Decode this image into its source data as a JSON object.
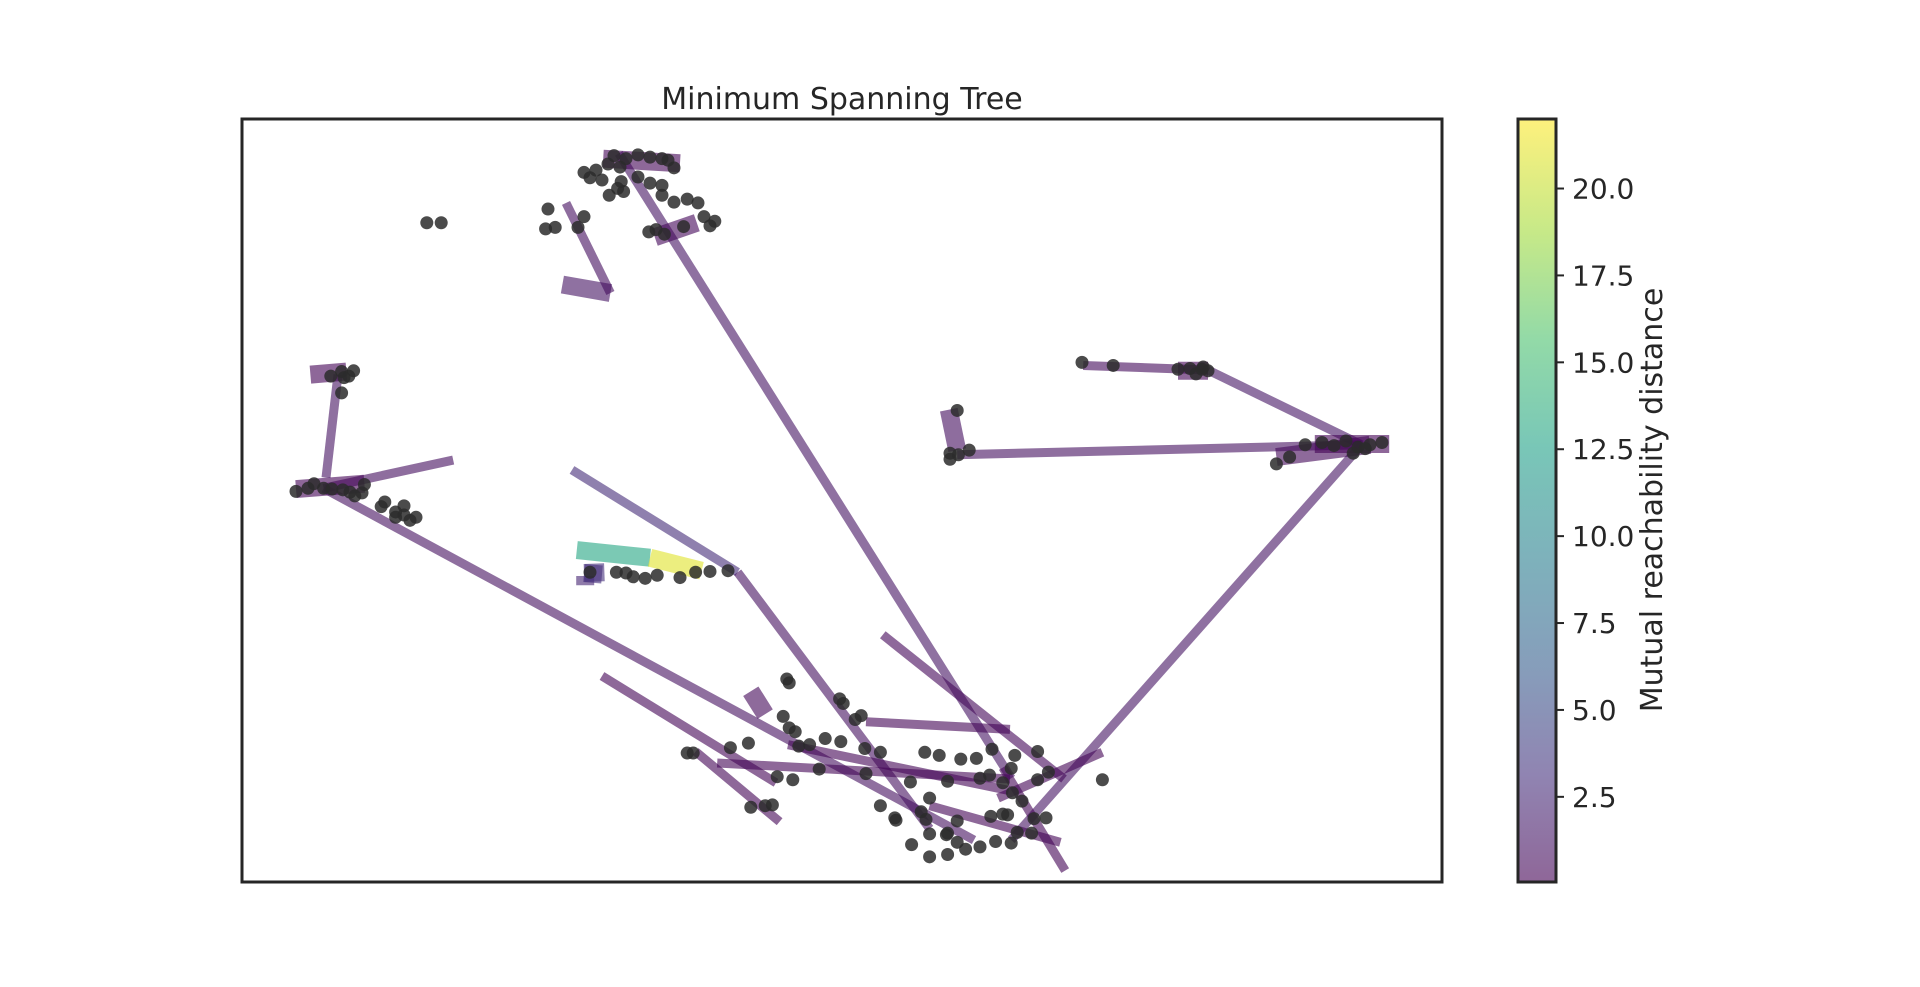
{
  "chart_data": {
    "type": "scatter",
    "title": "Minimum Spanning Tree",
    "xlabel": "",
    "ylabel": "",
    "xlim": [
      0,
      100
    ],
    "ylim": [
      0,
      100
    ],
    "axis_ticks_visible": false,
    "grid": false,
    "point_color": "#2b2b2b",
    "edge_colormap": "viridis",
    "edge_alpha": 0.6,
    "colorbar": {
      "label": "Mutual reachability distance",
      "range": [
        0.05,
        22.0
      ],
      "ticks": [
        2.5,
        5.0,
        7.5,
        10.0,
        12.5,
        15.0,
        17.5,
        20.0
      ],
      "tick_labels": [
        "2.5",
        "5.0",
        "7.5",
        "10.0",
        "12.5",
        "15.0",
        "17.5",
        "20.0"
      ]
    },
    "edges": [
      {
        "from": [
          31.4,
          95.5
        ],
        "to": [
          64.1,
          13.6
        ],
        "d": 1.2
      },
      {
        "from": [
          6.8,
          51.6
        ],
        "to": [
          61.0,
          5.5
        ],
        "d": 1.0
      },
      {
        "from": [
          93.3,
          57.3
        ],
        "to": [
          64.1,
          5.5
        ],
        "d": 1.2
      },
      {
        "from": [
          8.0,
          66.5
        ],
        "to": [
          7.0,
          53.0
        ],
        "d": 1.1
      },
      {
        "from": [
          59.6,
          56.0
        ],
        "to": [
          93.3,
          57.3
        ],
        "d": 1.0
      },
      {
        "from": [
          58.9,
          61.9
        ],
        "to": [
          59.6,
          56.6
        ],
        "d": 0.8
      },
      {
        "from": [
          70.1,
          67.7
        ],
        "to": [
          80.5,
          67.1
        ],
        "d": 0.6
      },
      {
        "from": [
          80.5,
          67.1
        ],
        "to": [
          93.3,
          57.3
        ],
        "d": 1.3
      },
      {
        "from": [
          17.6,
          55.3
        ],
        "to": [
          6.8,
          51.6
        ],
        "d": 0.8
      },
      {
        "from": [
          27.5,
          54.0
        ],
        "to": [
          41.3,
          40.6
        ],
        "d": 2.8
      },
      {
        "from": [
          41.3,
          40.6
        ],
        "to": [
          57.3,
          7.0
        ],
        "d": 1.0
      },
      {
        "from": [
          26.7,
          78.3
        ],
        "to": [
          30.7,
          77.2
        ],
        "d": 1.2
      },
      {
        "from": [
          30.7,
          77.2
        ],
        "to": [
          27.0,
          89.0
        ],
        "d": 0.8
      },
      {
        "from": [
          34.4,
          84.5
        ],
        "to": [
          37.9,
          86.4
        ],
        "d": 0.4
      },
      {
        "from": [
          94.0,
          57.3
        ],
        "to": [
          86.2,
          55.7
        ],
        "d": 0.5
      },
      {
        "from": [
          28.6,
          40.1
        ],
        "to": [
          28.6,
          38.9
        ],
        "d": 2.3
      },
      {
        "from": [
          53.4,
          32.4
        ],
        "to": [
          68.5,
          13.5
        ],
        "d": 0.4
      },
      {
        "from": [
          42.4,
          25.0
        ],
        "to": [
          43.6,
          22.0
        ],
        "d": 0.5
      },
      {
        "from": [
          27.9,
          43.5
        ],
        "to": [
          34.0,
          42.5
        ],
        "d": 13.0
      },
      {
        "from": [
          34.0,
          42.5
        ],
        "to": [
          38.3,
          40.8
        ],
        "d": 21.0
      },
      {
        "from": [
          28.5,
          40.5
        ],
        "to": [
          30.2,
          40.6
        ],
        "d": 3.0
      },
      {
        "from": [
          28.5,
          40.5
        ],
        "to": [
          30.0,
          40.3
        ],
        "d": 3.0
      },
      {
        "from": [
          37.8,
          17.1
        ],
        "to": [
          44.8,
          7.9
        ],
        "d": 0.3
      },
      {
        "from": [
          30.0,
          27.0
        ],
        "to": [
          44.5,
          13.0
        ],
        "d": 0.3
      },
      {
        "from": [
          63.4,
          15.0
        ],
        "to": [
          68.6,
          1.5
        ],
        "d": 0.3
      },
      {
        "from": [
          71.7,
          17.0
        ],
        "to": [
          63.0,
          11.0
        ],
        "d": 0.3
      },
      {
        "from": [
          39.6,
          15.6
        ],
        "to": [
          64.0,
          13.5
        ],
        "d": 0.3
      },
      {
        "from": [
          57.3,
          10.0
        ],
        "to": [
          68.2,
          5.2
        ],
        "d": 0.3
      },
      {
        "from": [
          64.0,
          20.0
        ],
        "to": [
          52.0,
          21.0
        ],
        "d": 0.3
      },
      {
        "from": [
          45.5,
          18.0
        ],
        "to": [
          63.9,
          12.0
        ],
        "d": 0.3
      },
      {
        "from": [
          30.1,
          94.8
        ],
        "to": [
          36.5,
          94.2
        ],
        "d": 0.3
      },
      {
        "from": [
          8.7,
          66.9
        ],
        "to": [
          5.7,
          66.5
        ],
        "d": 0.2
      },
      {
        "from": [
          4.5,
          51.5
        ],
        "to": [
          10.2,
          52.2
        ],
        "d": 0.2
      },
      {
        "from": [
          89.4,
          57.4
        ],
        "to": [
          95.6,
          57.4
        ],
        "d": 0.2
      },
      {
        "from": [
          80.5,
          67.0
        ],
        "to": [
          78.0,
          67.0
        ],
        "d": 0.2
      }
    ],
    "points": [
      [
        15.4,
        86.4
      ],
      [
        16.6,
        86.4
      ],
      [
        25.3,
        85.6
      ],
      [
        25.5,
        88.2
      ],
      [
        26.1,
        85.8
      ],
      [
        28.0,
        85.8
      ],
      [
        28.5,
        87.2
      ],
      [
        28.5,
        93.0
      ],
      [
        29.5,
        93.3
      ],
      [
        30.5,
        94.1
      ],
      [
        31.0,
        95.2
      ],
      [
        31.5,
        93.7
      ],
      [
        32.0,
        94.8
      ],
      [
        33.0,
        95.3
      ],
      [
        34.0,
        95.0
      ],
      [
        35.0,
        94.8
      ],
      [
        36.0,
        93.6
      ],
      [
        35.5,
        94.6
      ],
      [
        29.0,
        92.3
      ],
      [
        30.0,
        92.0
      ],
      [
        31.6,
        91.8
      ],
      [
        33.0,
        92.4
      ],
      [
        34.0,
        91.6
      ],
      [
        35.0,
        91.3
      ],
      [
        31.8,
        90.5
      ],
      [
        30.6,
        90.0
      ],
      [
        31.3,
        90.9
      ],
      [
        35.0,
        90.0
      ],
      [
        36.0,
        89.1
      ],
      [
        37.1,
        89.5
      ],
      [
        38.0,
        89.0
      ],
      [
        38.5,
        87.2
      ],
      [
        39.0,
        86.0
      ],
      [
        39.4,
        86.6
      ],
      [
        36.8,
        85.9
      ],
      [
        33.9,
        85.2
      ],
      [
        34.5,
        85.5
      ],
      [
        35.2,
        84.9
      ],
      [
        8.3,
        66.9
      ],
      [
        7.4,
        66.3
      ],
      [
        8.9,
        66.3
      ],
      [
        9.3,
        67.0
      ],
      [
        8.5,
        66.1
      ],
      [
        8.3,
        64.1
      ],
      [
        4.5,
        51.2
      ],
      [
        5.5,
        51.6
      ],
      [
        6.0,
        52.2
      ],
      [
        6.8,
        51.6
      ],
      [
        7.5,
        51.5
      ],
      [
        8.4,
        51.4
      ],
      [
        9.0,
        51.1
      ],
      [
        10.0,
        51.0
      ],
      [
        10.2,
        52.1
      ],
      [
        9.4,
        50.6
      ],
      [
        11.6,
        49.2
      ],
      [
        11.9,
        49.8
      ],
      [
        12.8,
        48.5
      ],
      [
        13.5,
        49.3
      ],
      [
        14.5,
        47.8
      ],
      [
        14.0,
        47.4
      ],
      [
        12.8,
        47.8
      ],
      [
        13.5,
        48.1
      ],
      [
        70.0,
        68.1
      ],
      [
        72.6,
        67.7
      ],
      [
        78.0,
        67.2
      ],
      [
        79.0,
        67.3
      ],
      [
        80.0,
        67.2
      ],
      [
        80.5,
        67.0
      ],
      [
        79.5,
        66.6
      ],
      [
        80.1,
        67.5
      ],
      [
        59.6,
        61.8
      ],
      [
        59.0,
        55.4
      ],
      [
        59.7,
        56.0
      ],
      [
        60.6,
        56.6
      ],
      [
        59.0,
        56.2
      ],
      [
        86.2,
        54.8
      ],
      [
        87.3,
        55.7
      ],
      [
        88.6,
        57.3
      ],
      [
        90.0,
        57.6
      ],
      [
        91.0,
        57.2
      ],
      [
        92.0,
        57.8
      ],
      [
        93.0,
        57.0
      ],
      [
        94.0,
        57.3
      ],
      [
        95.0,
        57.6
      ],
      [
        93.6,
        56.8
      ],
      [
        92.6,
        56.2
      ],
      [
        29.0,
        40.6
      ],
      [
        31.2,
        40.6
      ],
      [
        32.0,
        40.5
      ],
      [
        32.6,
        40.0
      ],
      [
        33.6,
        39.8
      ],
      [
        34.6,
        40.2
      ],
      [
        36.5,
        39.9
      ],
      [
        37.8,
        40.6
      ],
      [
        39.0,
        40.7
      ],
      [
        40.5,
        40.8
      ],
      [
        45.4,
        26.6
      ],
      [
        45.6,
        26.1
      ],
      [
        49.8,
        24.0
      ],
      [
        50.1,
        23.4
      ],
      [
        51.1,
        21.3
      ],
      [
        51.6,
        21.8
      ],
      [
        45.1,
        21.7
      ],
      [
        45.6,
        20.2
      ],
      [
        46.1,
        19.7
      ],
      [
        37.6,
        16.9
      ],
      [
        37.1,
        16.9
      ],
      [
        40.7,
        17.6
      ],
      [
        42.2,
        18.2
      ],
      [
        46.4,
        17.8
      ],
      [
        47.3,
        18.0
      ],
      [
        48.6,
        18.8
      ],
      [
        49.9,
        18.4
      ],
      [
        51.9,
        17.5
      ],
      [
        53.2,
        17.0
      ],
      [
        56.9,
        17.0
      ],
      [
        58.1,
        16.6
      ],
      [
        59.9,
        16.1
      ],
      [
        61.2,
        16.2
      ],
      [
        62.5,
        17.4
      ],
      [
        64.4,
        16.6
      ],
      [
        66.3,
        17.1
      ],
      [
        44.6,
        13.8
      ],
      [
        45.9,
        13.4
      ],
      [
        48.1,
        14.8
      ],
      [
        52.0,
        14.2
      ],
      [
        55.7,
        13.1
      ],
      [
        58.8,
        13.2
      ],
      [
        61.5,
        13.6
      ],
      [
        62.3,
        14.0
      ],
      [
        63.4,
        13.0
      ],
      [
        64.1,
        14.9
      ],
      [
        66.3,
        13.4
      ],
      [
        67.2,
        14.4
      ],
      [
        71.7,
        13.4
      ],
      [
        42.4,
        9.8
      ],
      [
        43.6,
        10.0
      ],
      [
        44.2,
        10.1
      ],
      [
        53.2,
        10.0
      ],
      [
        54.4,
        8.4
      ],
      [
        56.6,
        9.2
      ],
      [
        57.0,
        8.2
      ],
      [
        58.8,
        6.4
      ],
      [
        59.6,
        8.0
      ],
      [
        62.4,
        8.6
      ],
      [
        63.4,
        8.9
      ],
      [
        64.2,
        11.7
      ],
      [
        65.0,
        10.6
      ],
      [
        66.0,
        8.3
      ],
      [
        67.0,
        8.4
      ],
      [
        55.8,
        4.9
      ],
      [
        57.3,
        6.3
      ],
      [
        58.7,
        6.2
      ],
      [
        59.6,
        5.2
      ],
      [
        60.3,
        4.3
      ],
      [
        61.5,
        4.6
      ],
      [
        62.8,
        5.3
      ],
      [
        64.1,
        5.1
      ],
      [
        65.8,
        6.4
      ],
      [
        64.6,
        6.5
      ],
      [
        63.8,
        8.8
      ],
      [
        57.3,
        3.3
      ],
      [
        58.8,
        3.6
      ],
      [
        54.5,
        8.1
      ],
      [
        57.3,
        11.0
      ]
    ]
  }
}
